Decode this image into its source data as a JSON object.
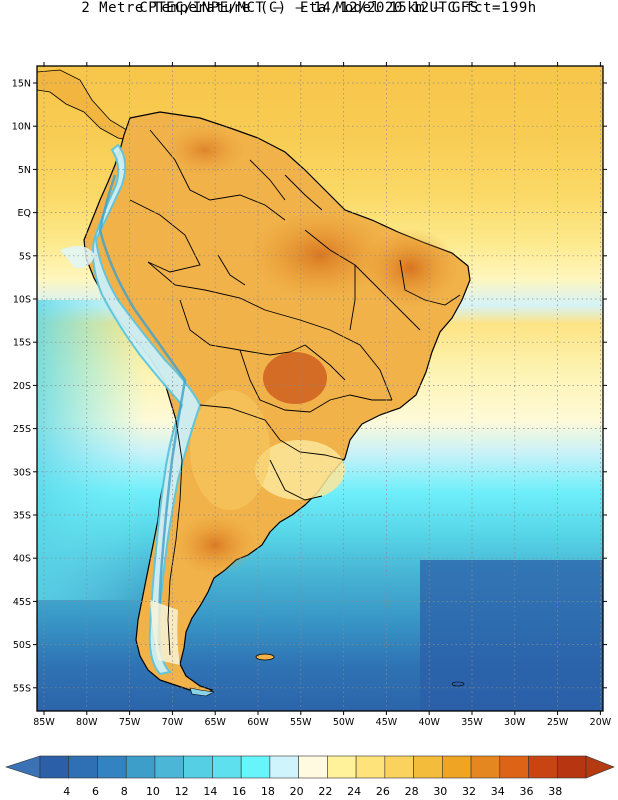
{
  "title": {
    "line1": "CPTEC/INPE/MCT –  Eta Model 15km – GFS",
    "line2": "2 Metre Temperature (C) – 14/12/2020 12UTC fct=199h"
  },
  "axes": {
    "lat_labels": [
      "15N",
      "10N",
      "5N",
      "EQ",
      "5S",
      "10S",
      "15S",
      "20S",
      "25S",
      "30S",
      "35S",
      "40S",
      "45S",
      "50S",
      "55S"
    ],
    "lon_labels": [
      "85W",
      "80W",
      "75W",
      "70W",
      "65W",
      "60W",
      "55W",
      "50W",
      "45W",
      "40W",
      "35W",
      "30W",
      "25W",
      "20W"
    ]
  },
  "colorbar": {
    "labels": [
      "4",
      "6",
      "8",
      "10",
      "12",
      "14",
      "16",
      "18",
      "20",
      "22",
      "24",
      "26",
      "28",
      "30",
      "32",
      "34",
      "36",
      "38"
    ],
    "colors": [
      "#2b5fa8",
      "#2f6fb3",
      "#3283bf",
      "#3d9ec9",
      "#4bb6d6",
      "#55cfe3",
      "#5ee0ee",
      "#66f5fb",
      "#cff4fb",
      "#fffae0",
      "#fff29a",
      "#fee27a",
      "#fbd25d",
      "#f3bc3b",
      "#efa523",
      "#e58721",
      "#dd6417",
      "#c84513",
      "#b73510"
    ],
    "under_color": "#3a72b5",
    "over_color": "#b43a12"
  }
}
